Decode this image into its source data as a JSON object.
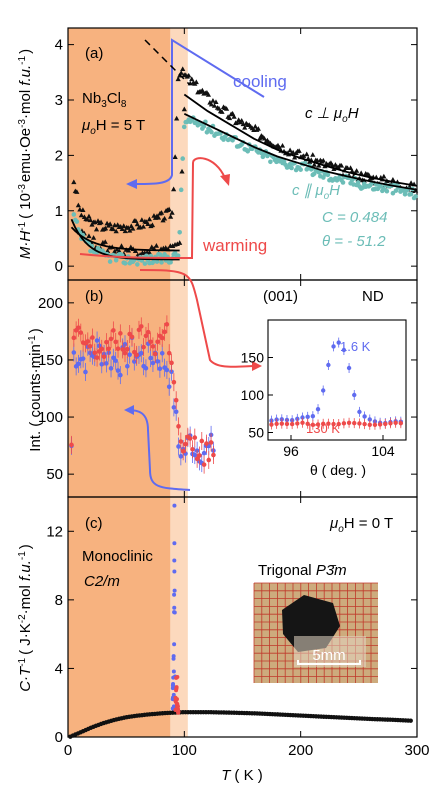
{
  "colors": {
    "mono_bg": "#f7b27f",
    "gap_bg": "#fcd9bd",
    "black": "#111111",
    "teal": "#6cbdb7",
    "blue": "#5f6bf0",
    "red": "#ee4a4a"
  },
  "chart_data": [
    {
      "panel_label": "(a)",
      "type": "scatter",
      "ylabel_text": [
        "M·H",
        "-1",
        "( 10",
        "-3",
        "emu·Oe",
        "-1",
        "·mol ",
        "f.u.",
        "-1",
        ")"
      ],
      "ylim": [
        -0.25,
        4.3
      ],
      "xlim": [
        0,
        300
      ],
      "yticks": [
        0,
        1,
        2,
        3,
        4
      ],
      "annotations": {
        "compound": [
          "Nb",
          "3",
          "Cl",
          "8"
        ],
        "field": [
          "μ",
          "o",
          "H = 5 T"
        ],
        "cooling": "cooling",
        "warming": "warming",
        "perp": [
          "c ⊥ μ",
          "o",
          "H"
        ],
        "par": [
          "c ∥ μ",
          "o",
          "H"
        ],
        "C": "C = 0.484",
        "theta": "θ = - 51.2"
      },
      "series": [
        {
          "name": "c ⊥ μoH",
          "color": "black",
          "marker": "triangle",
          "x": [
            5,
            10,
            15,
            20,
            30,
            40,
            50,
            60,
            70,
            80,
            85,
            90,
            95,
            100,
            110,
            120,
            140,
            160,
            180,
            200,
            220,
            240,
            260,
            280,
            300
          ],
          "y": [
            1.55,
            1.0,
            0.88,
            0.78,
            0.72,
            0.7,
            0.72,
            0.75,
            0.8,
            0.88,
            0.93,
            0.97,
            3.55,
            3.45,
            3.25,
            3.05,
            2.7,
            2.45,
            2.2,
            2.0,
            1.85,
            1.7,
            1.6,
            1.5,
            1.4
          ]
        },
        {
          "name": "c ⊥ μoH (warming)",
          "color": "black",
          "marker": "triangle",
          "x": [
            10,
            20,
            30,
            40,
            50,
            60,
            70,
            80,
            90,
            96,
            100
          ],
          "y": [
            0.7,
            0.45,
            0.36,
            0.32,
            0.3,
            0.29,
            0.3,
            0.31,
            0.33,
            0.36,
            2.9
          ]
        },
        {
          "name": "c ∥ μoH",
          "color": "teal",
          "marker": "circle",
          "x": [
            5,
            10,
            20,
            30,
            40,
            50,
            60,
            70,
            80,
            90,
            95,
            100,
            110,
            120,
            140,
            160,
            180,
            200,
            220,
            240,
            260,
            280,
            300
          ],
          "y": [
            0.9,
            0.55,
            0.3,
            0.2,
            0.15,
            0.12,
            0.12,
            0.12,
            0.13,
            0.16,
            0.2,
            2.6,
            2.6,
            2.5,
            2.3,
            2.1,
            1.9,
            1.8,
            1.65,
            1.55,
            1.45,
            1.4,
            1.3
          ]
        }
      ],
      "fits": [
        {
          "x": [
            100,
            120,
            140,
            160,
            180,
            200,
            220,
            240,
            260,
            280,
            300
          ],
          "y": [
            3.1,
            2.8,
            2.55,
            2.3,
            2.1,
            1.95,
            1.82,
            1.7,
            1.6,
            1.52,
            1.45
          ]
        },
        {
          "x": [
            100,
            120,
            140,
            160,
            180,
            200,
            220,
            240,
            260,
            280,
            300
          ],
          "y": [
            2.75,
            2.55,
            2.35,
            2.15,
            1.98,
            1.85,
            1.72,
            1.62,
            1.53,
            1.45,
            1.38
          ]
        }
      ]
    },
    {
      "panel_label": "(b)",
      "type": "scatter",
      "ylabel_text": [
        "Int. ( counts·min",
        "-1",
        ")"
      ],
      "ylim": [
        30,
        220
      ],
      "xlim": [
        0,
        300
      ],
      "yticks": [
        50,
        100,
        150,
        200
      ],
      "annotations": {
        "reflection": "(001)",
        "technique": "ND"
      },
      "series": [
        {
          "name": "1.6 K",
          "color": "blue",
          "x": [
            5,
            15,
            25,
            35,
            45,
            55,
            65,
            75,
            85,
            90,
            95,
            100,
            105,
            110,
            120,
            125
          ],
          "y": [
            155,
            150,
            160,
            152,
            148,
            158,
            150,
            155,
            145,
            125,
            75,
            68,
            80,
            72,
            70,
            75
          ]
        },
        {
          "name": "130 K",
          "color": "red",
          "x": [
            5,
            15,
            25,
            35,
            45,
            55,
            65,
            75,
            85,
            90,
            95,
            100,
            105,
            110,
            120,
            125
          ],
          "y": [
            170,
            165,
            158,
            162,
            168,
            160,
            170,
            165,
            175,
            150,
            85,
            70,
            75,
            72,
            68,
            70
          ]
        }
      ],
      "inset": {
        "xlabel": "θ ( deg. )",
        "xlim": [
          94,
          106
        ],
        "ylim": [
          40,
          200
        ],
        "xticks": [
          96,
          104
        ],
        "yticks": [
          50,
          100,
          150
        ],
        "series": [
          {
            "name": "1.6 K",
            "color": "blue",
            "x": [
              94,
              95,
              96,
              97,
              98,
              98.5,
              99,
              99.5,
              100,
              100.5,
              101,
              101.5,
              102,
              103,
              104,
              105,
              106
            ],
            "y": [
              65,
              68,
              66,
              70,
              72,
              85,
              120,
              160,
              172,
              165,
              140,
              100,
              75,
              66,
              62,
              65,
              64
            ]
          },
          {
            "name": "130 K",
            "color": "red",
            "x": [
              94,
              95,
              96,
              97,
              98,
              99,
              100,
              101,
              102,
              103,
              104,
              105,
              106
            ],
            "y": [
              60,
              62,
              61,
              63,
              60,
              62,
              61,
              63,
              62,
              60,
              61,
              63,
              62
            ]
          }
        ]
      }
    },
    {
      "panel_label": "(c)",
      "type": "scatter",
      "ylabel_text": [
        "C·T",
        "-1",
        "( J·K",
        "-2",
        "·mol ",
        "f.u.",
        "-1",
        ")"
      ],
      "xlabel_text": [
        "T",
        "( K )"
      ],
      "ylim": [
        0,
        14
      ],
      "xlim": [
        0,
        300
      ],
      "yticks": [
        0,
        4,
        8,
        12
      ],
      "xticks": [
        0,
        100,
        200,
        300
      ],
      "annotations": {
        "field": [
          "μ",
          "o",
          "H = 0 T"
        ],
        "mono": "Monoclinic",
        "mono_sg": "C2/m",
        "trig": "Trigonal ",
        "trig_sg": "P3̄m",
        "scale": "5mm"
      },
      "series": [
        {
          "name": "C/T",
          "color": "black",
          "x": [
            2,
            10,
            20,
            30,
            40,
            50,
            60,
            70,
            80,
            90,
            100,
            110,
            120,
            140,
            160,
            180,
            200,
            220,
            240,
            260,
            280,
            295
          ],
          "y": [
            0.02,
            0.25,
            0.55,
            0.8,
            1.0,
            1.15,
            1.25,
            1.32,
            1.38,
            1.42,
            1.45,
            1.45,
            1.45,
            1.42,
            1.38,
            1.32,
            1.25,
            1.18,
            1.12,
            1.05,
            1.0,
            0.95
          ]
        },
        {
          "name": "spike-blue",
          "color": "blue",
          "x": [
            90,
            91,
            91.5,
            92
          ],
          "y": [
            2.5,
            6.5,
            13.5,
            4
          ]
        },
        {
          "name": "spike-red",
          "color": "red",
          "x": [
            92,
            93,
            94,
            95
          ],
          "y": [
            1.8,
            3.5,
            2.2,
            1.6
          ]
        }
      ]
    }
  ]
}
